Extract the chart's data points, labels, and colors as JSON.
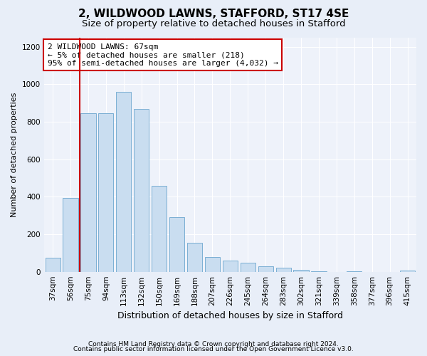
{
  "title1": "2, WILDWOOD LAWNS, STAFFORD, ST17 4SE",
  "title2": "Size of property relative to detached houses in Stafford",
  "xlabel": "Distribution of detached houses by size in Stafford",
  "ylabel": "Number of detached properties",
  "categories": [
    "37sqm",
    "56sqm",
    "75sqm",
    "94sqm",
    "113sqm",
    "132sqm",
    "150sqm",
    "169sqm",
    "188sqm",
    "207sqm",
    "226sqm",
    "245sqm",
    "264sqm",
    "283sqm",
    "302sqm",
    "321sqm",
    "339sqm",
    "358sqm",
    "377sqm",
    "396sqm",
    "415sqm"
  ],
  "values": [
    75,
    395,
    845,
    845,
    960,
    870,
    460,
    290,
    155,
    80,
    60,
    50,
    30,
    20,
    10,
    2,
    0,
    2,
    0,
    0,
    5
  ],
  "bar_color": "#c9ddf0",
  "bar_edge_color": "#7aafd4",
  "vline_color": "#cc0000",
  "annotation_text": "2 WILDWOOD LAWNS: 67sqm\n← 5% of detached houses are smaller (218)\n95% of semi-detached houses are larger (4,032) →",
  "annotation_box_color": "#ffffff",
  "annotation_box_edge": "#cc0000",
  "footnote1": "Contains HM Land Registry data © Crown copyright and database right 2024.",
  "footnote2": "Contains public sector information licensed under the Open Government Licence v3.0.",
  "ylim": [
    0,
    1250
  ],
  "yticks": [
    0,
    200,
    400,
    600,
    800,
    1000,
    1200
  ],
  "bg_color": "#e8eef8",
  "plot_bg_color": "#eef2fa",
  "title1_fontsize": 11,
  "title2_fontsize": 9.5,
  "grid_color": "#ffffff",
  "ylabel_fontsize": 8,
  "xlabel_fontsize": 9,
  "tick_fontsize": 7.5,
  "footnote_fontsize": 6.5
}
